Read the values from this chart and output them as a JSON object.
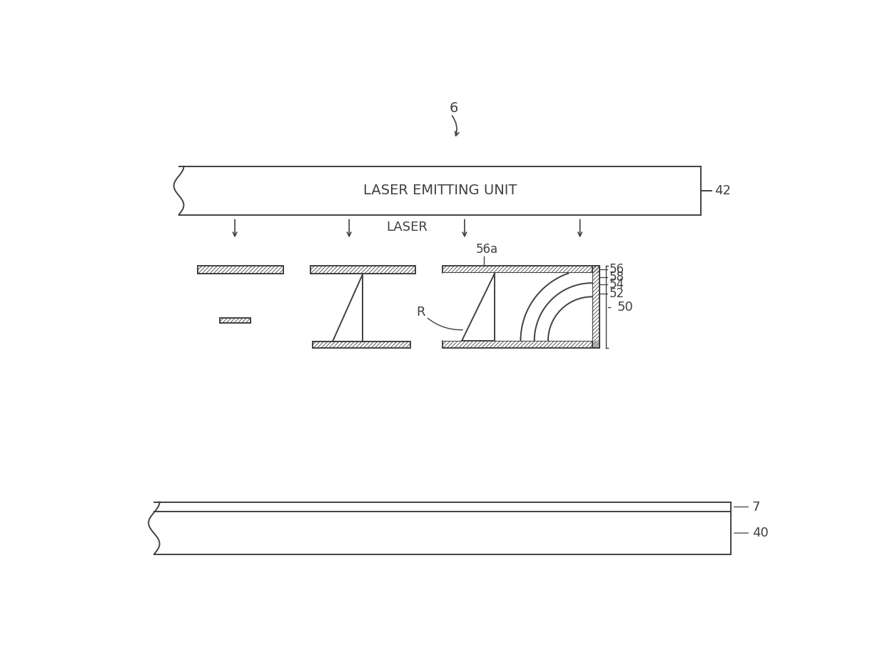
{
  "bg_color": "#ffffff",
  "line_color": "#404040",
  "label_6": "6",
  "label_42": "42",
  "label_laser_emitting": "LASER EMITTING UNIT",
  "label_laser": "LASER",
  "label_56a": "56a",
  "label_56": "56",
  "label_58": "58",
  "label_50": "50",
  "label_54": "54",
  "label_52": "52",
  "label_7": "7",
  "label_40": "40",
  "label_R": "R",
  "figw": 12.4,
  "figh": 9.14,
  "dpi": 100
}
